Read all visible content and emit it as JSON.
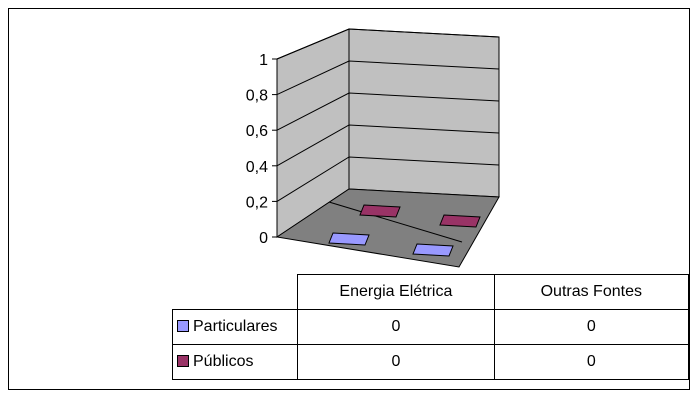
{
  "chart_data": {
    "type": "bar",
    "subtype": "3d-column with data table",
    "categories": [
      "Energia Elétrica",
      "Outras Fontes"
    ],
    "series": [
      {
        "name": "Particulares",
        "values": [
          0,
          0
        ],
        "color": "#9999ff"
      },
      {
        "name": "Públicos",
        "values": [
          0,
          0
        ],
        "color": "#993366"
      }
    ],
    "yticks": [
      "0",
      "0,2",
      "0,4",
      "0,6",
      "0,8",
      "1"
    ],
    "ylim": [
      0,
      1
    ],
    "grid": true,
    "legend": "data-table"
  }
}
